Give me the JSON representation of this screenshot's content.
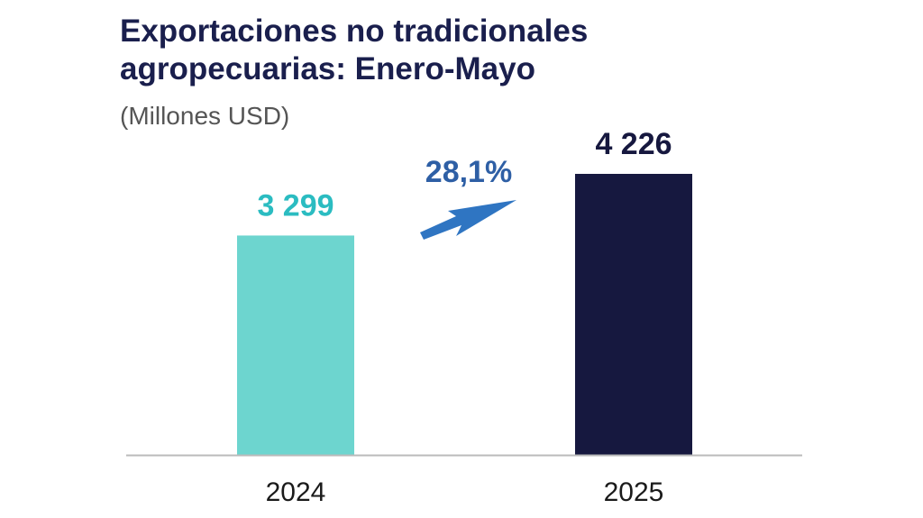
{
  "chart_data": {
    "type": "bar",
    "title_line1": "Exportaciones no tradicionales",
    "title_line2": "agropecuarias: Enero-Mayo",
    "subtitle": "(Millones USD)",
    "categories": [
      "2024",
      "2025"
    ],
    "values": [
      3299,
      4226
    ],
    "value_labels": [
      "3 299",
      "4 226"
    ],
    "bar_colors": [
      "#6dd5cf",
      "#16183f"
    ],
    "value_label_colors": [
      "#2bbcc1",
      "#16183f"
    ],
    "growth_label": "28,1%",
    "growth_color": "#2e5fa5",
    "arrow_color": "#2f75c2",
    "xlabel": "",
    "ylabel": "",
    "ylim": [
      0,
      4600
    ],
    "grid": false,
    "legend": "none"
  },
  "colors": {
    "title": "#1a1f4d",
    "subtitle": "#555555",
    "axis": "#bbbbbb"
  }
}
